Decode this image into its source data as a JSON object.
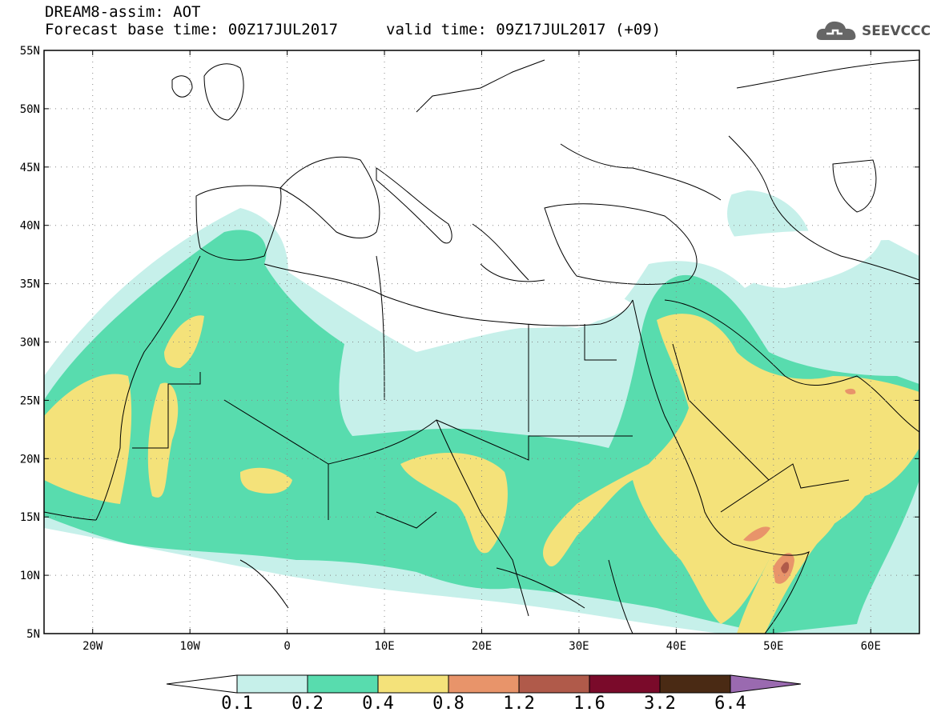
{
  "header": {
    "title": "DREAM8-assim: AOT",
    "base_time": "Forecast base time: 00Z17JUL2017",
    "valid_time": "valid time: 09Z17JUL2017 (+09)",
    "logo_text": "SEEVCCC"
  },
  "map": {
    "variable": "AOT",
    "projection": "equirectangular",
    "lon_range": [
      -25,
      65
    ],
    "lat_range": [
      5,
      55
    ],
    "lat_labels": [
      "55N",
      "50N",
      "45N",
      "40N",
      "35N",
      "30N",
      "25N",
      "20N",
      "15N",
      "10N",
      "5N"
    ],
    "lon_labels": [
      "20W",
      "10W",
      "0",
      "10E",
      "20E",
      "30E",
      "40E",
      "50E",
      "60E"
    ],
    "gridlines": true
  },
  "colorbar": {
    "levels": [
      "0.1",
      "0.2",
      "0.4",
      "0.8",
      "1.2",
      "1.6",
      "3.2",
      "6.4"
    ],
    "colors": [
      "#c6f0ea",
      "#58dcae",
      "#f4e27a",
      "#e8946a",
      "#b05a4a",
      "#7a0a2a",
      "#4a2a14",
      "#9a6ab0"
    ]
  }
}
